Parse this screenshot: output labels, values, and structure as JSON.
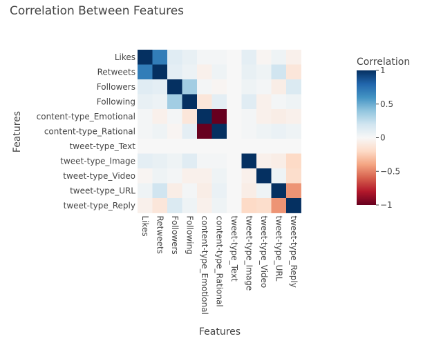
{
  "chart_data": {
    "type": "heatmap",
    "title": "Correlation Between Features",
    "xlabel": "Features",
    "ylabel": "Features",
    "colorbar_title": "Correlation",
    "colorbar_ticks": [
      "1",
      "0.5",
      "0",
      "−0.5",
      "−1"
    ],
    "colorbar_tick_values": [
      1,
      0.5,
      0,
      -0.5,
      -1
    ],
    "zrange": [
      -1,
      1
    ],
    "colorscale": [
      "#67001f",
      "#b2182b",
      "#d6604d",
      "#f4a582",
      "#fddbc7",
      "#f7f7f7",
      "#d1e5f0",
      "#92c5de",
      "#4393c3",
      "#2166ac",
      "#053061"
    ],
    "categories": [
      "Likes",
      "Retweets",
      "Followers",
      "Following",
      "content-type_Emotional",
      "content-type_Rational",
      "tweet-type_Text",
      "tweet-type_Image",
      "tweet-type_Video",
      "tweet-type_URL",
      "tweet-type_Reply"
    ],
    "z": [
      [
        1.0,
        0.7,
        0.12,
        0.08,
        0.02,
        0.02,
        0.0,
        0.1,
        -0.02,
        0.05,
        -0.05
      ],
      [
        0.7,
        1.0,
        0.1,
        0.06,
        -0.05,
        0.05,
        0.0,
        0.08,
        0.05,
        0.2,
        -0.12
      ],
      [
        0.12,
        0.1,
        1.0,
        0.35,
        0.02,
        -0.02,
        0.0,
        0.05,
        0.02,
        -0.07,
        0.15
      ],
      [
        0.08,
        0.06,
        0.35,
        1.0,
        -0.12,
        0.1,
        0.0,
        0.12,
        -0.05,
        0.02,
        0.05
      ],
      [
        0.02,
        -0.05,
        0.02,
        -0.12,
        1.0,
        -1.0,
        0.0,
        0.02,
        -0.05,
        -0.07,
        -0.05
      ],
      [
        0.02,
        0.05,
        -0.02,
        0.1,
        -1.0,
        1.0,
        0.0,
        0.02,
        0.05,
        0.07,
        0.05
      ],
      [
        0.0,
        0.0,
        0.0,
        0.0,
        0.0,
        0.0,
        0.0,
        0.0,
        0.0,
        0.0,
        0.0
      ],
      [
        0.1,
        0.08,
        0.05,
        0.12,
        0.02,
        0.02,
        0.0,
        1.0,
        -0.05,
        -0.07,
        -0.2
      ],
      [
        -0.02,
        0.05,
        0.02,
        -0.05,
        -0.05,
        0.05,
        0.0,
        -0.05,
        1.0,
        0.05,
        -0.18
      ],
      [
        0.05,
        0.2,
        -0.07,
        0.02,
        -0.07,
        0.07,
        0.0,
        -0.07,
        0.05,
        1.0,
        -0.45
      ],
      [
        -0.05,
        -0.12,
        0.15,
        0.05,
        -0.05,
        0.05,
        0.0,
        -0.2,
        -0.18,
        -0.45,
        1.0
      ]
    ]
  }
}
